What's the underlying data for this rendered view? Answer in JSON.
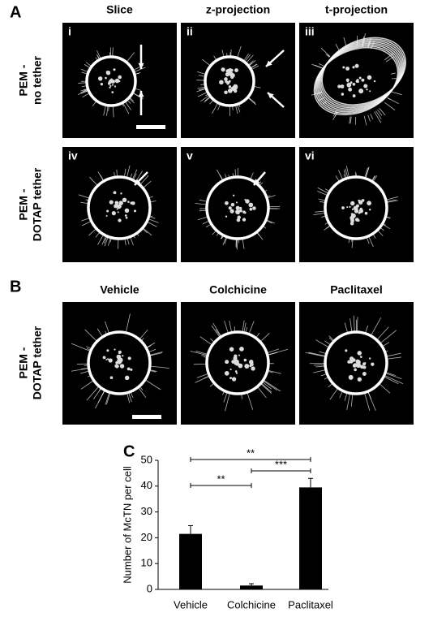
{
  "panel_a": {
    "label": "A",
    "columns": [
      "Slice",
      "z-projection",
      "t-projection"
    ],
    "rows": [
      {
        "label": [
          "PEM -",
          "no tether"
        ],
        "images": [
          "i",
          "ii",
          "iii"
        ]
      },
      {
        "label": [
          "PEM -",
          "DOTAP tether"
        ],
        "images": [
          "iv",
          "v",
          "vi"
        ]
      }
    ]
  },
  "panel_b": {
    "label": "B",
    "columns": [
      "Vehicle",
      "Colchicine",
      "Paclitaxel"
    ],
    "row_label": [
      "PEM -",
      "DOTAP tether"
    ]
  },
  "chart_data": {
    "type": "bar",
    "panel_label": "C",
    "ylabel": "Number of McTN per cell",
    "categories": [
      "Vehicle",
      "Colchicine",
      "Paclitaxel"
    ],
    "values": [
      21.5,
      1.5,
      39.5
    ],
    "errors": [
      3.2,
      0.7,
      3.5
    ],
    "color": "#000000",
    "ylim": [
      0,
      50
    ],
    "yticks": [
      0,
      10,
      20,
      30,
      40,
      50
    ],
    "annotations": [
      "**",
      "**",
      "***"
    ]
  }
}
